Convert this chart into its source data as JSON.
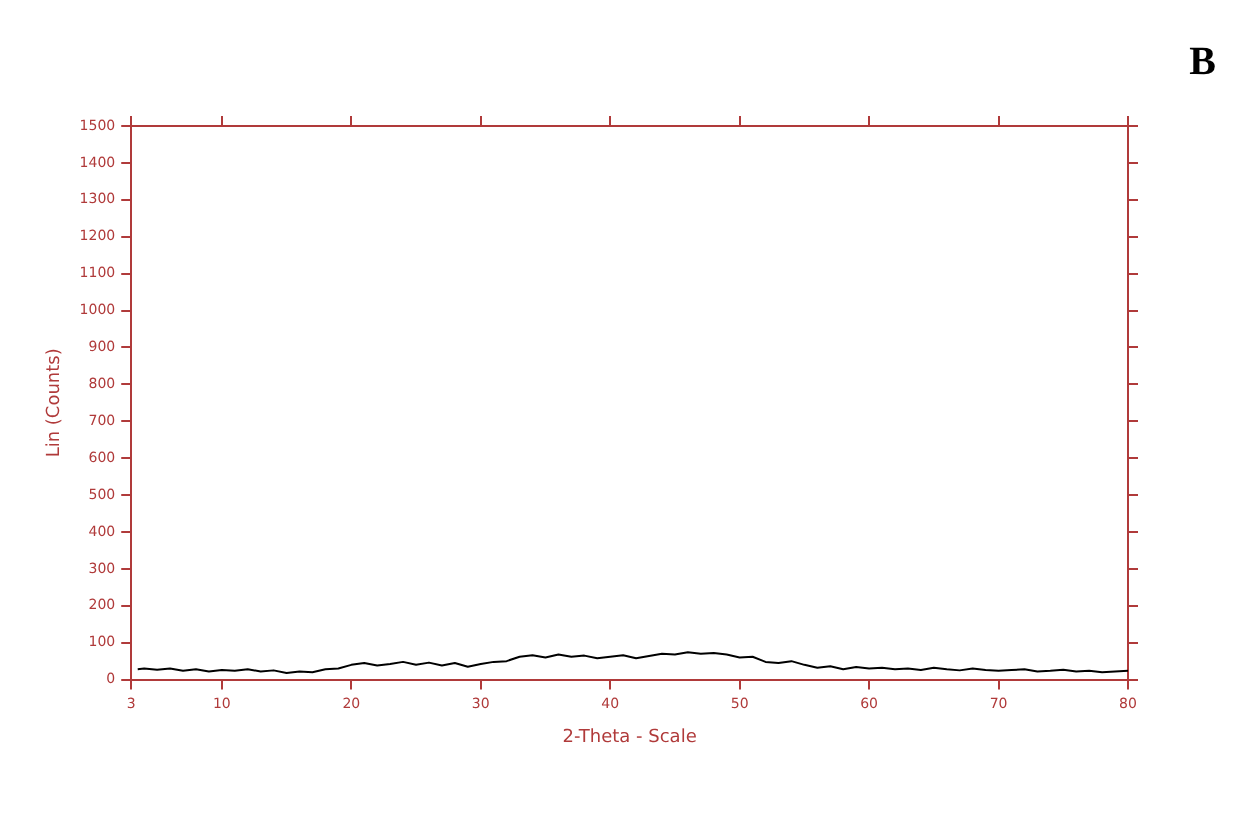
{
  "chart_data": {
    "type": "line",
    "title": "B",
    "xlabel": "2-Theta - Scale",
    "ylabel": "Lin (Counts)",
    "color": "#000000",
    "x": [
      3.5,
      4,
      5,
      6,
      7,
      8,
      9,
      10,
      11,
      12,
      13,
      14,
      15,
      16,
      17,
      18,
      19,
      20,
      21,
      22,
      23,
      24,
      25,
      26,
      27,
      28,
      29,
      30,
      31,
      32,
      33,
      34,
      35,
      36,
      37,
      38,
      39,
      40,
      41,
      42,
      43,
      44,
      45,
      46,
      47,
      48,
      49,
      50,
      51,
      52,
      53,
      54,
      55,
      56,
      57,
      58,
      59,
      60,
      61,
      62,
      63,
      64,
      65,
      66,
      67,
      68,
      69,
      70,
      71,
      72,
      73,
      74,
      75,
      76,
      77,
      78,
      79,
      80
    ],
    "values": [
      28,
      30,
      27,
      30,
      24,
      28,
      22,
      26,
      24,
      28,
      22,
      25,
      18,
      22,
      20,
      28,
      30,
      40,
      45,
      38,
      42,
      48,
      40,
      46,
      38,
      45,
      35,
      42,
      48,
      50,
      62,
      66,
      60,
      68,
      62,
      65,
      58,
      62,
      66,
      58,
      64,
      70,
      68,
      74,
      70,
      72,
      68,
      60,
      62,
      48,
      45,
      50,
      40,
      32,
      36,
      28,
      34,
      30,
      32,
      28,
      30,
      26,
      32,
      28,
      25,
      30,
      26,
      24,
      26,
      28,
      22,
      24,
      27,
      22,
      24,
      20,
      22,
      24
    ],
    "xlim": [
      3,
      80
    ],
    "xticks": [
      3,
      10,
      20,
      30,
      40,
      50,
      60,
      70,
      80
    ],
    "ylim": [
      0,
      1500
    ],
    "yticks": [
      0,
      100,
      200,
      300,
      400,
      500,
      600,
      700,
      800,
      900,
      1000,
      1100,
      1200,
      1300,
      1400,
      1500
    ],
    "grid": false,
    "legend": false,
    "marker": "none",
    "line_style": "solid"
  }
}
